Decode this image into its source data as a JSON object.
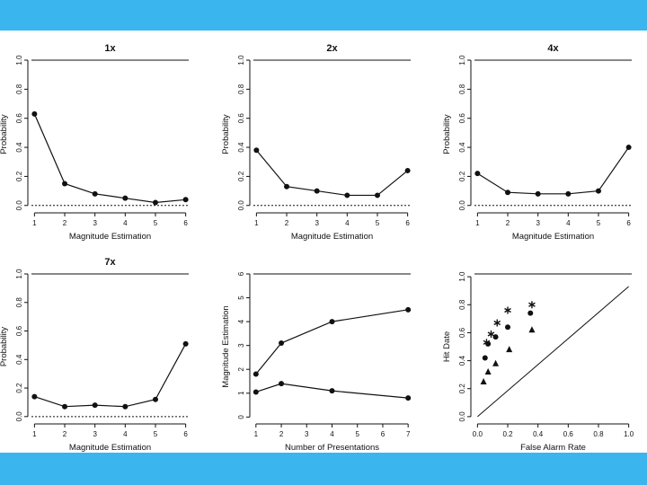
{
  "theme": {
    "band_color": "#3bb5ee",
    "ink": "#111111"
  },
  "chart_data": [
    {
      "type": "line",
      "title": "1x",
      "xlabel": "Magnitude Estimation",
      "ylabel": "Probability",
      "x": [
        1,
        2,
        3,
        4,
        5,
        6
      ],
      "xticks": [
        "1",
        "2",
        "3",
        "4",
        "5",
        "6"
      ],
      "yticks": [
        "0.0",
        "0.2",
        "0.4",
        "0.6",
        "0.8",
        "1.0"
      ],
      "xlim": [
        0.9,
        6.1
      ],
      "ylim": [
        -0.02,
        1.0
      ],
      "series": [
        {
          "name": "probability",
          "values": [
            0.63,
            0.15,
            0.08,
            0.05,
            0.02,
            0.04
          ]
        }
      ],
      "reference": {
        "type": "hline",
        "y": 0,
        "style": "dotted"
      }
    },
    {
      "type": "line",
      "title": "2x",
      "xlabel": "Magnitude Estimation",
      "ylabel": "Probability",
      "x": [
        1,
        2,
        3,
        4,
        5,
        6
      ],
      "xticks": [
        "1",
        "2",
        "3",
        "4",
        "5",
        "6"
      ],
      "yticks": [
        "0.0",
        "0.2",
        "0.4",
        "0.6",
        "0.8",
        "1.0"
      ],
      "xlim": [
        0.9,
        6.1
      ],
      "ylim": [
        -0.02,
        1.0
      ],
      "series": [
        {
          "name": "probability",
          "values": [
            0.38,
            0.13,
            0.1,
            0.07,
            0.07,
            0.24
          ]
        }
      ],
      "reference": {
        "type": "hline",
        "y": 0,
        "style": "dotted"
      }
    },
    {
      "type": "line",
      "title": "4x",
      "xlabel": "Magnitude Estimation",
      "ylabel": "Probability",
      "x": [
        1,
        2,
        3,
        4,
        5,
        6
      ],
      "xticks": [
        "1",
        "2",
        "3",
        "4",
        "5",
        "6"
      ],
      "yticks": [
        "0.0",
        "0.2",
        "0.4",
        "0.6",
        "0.8",
        "1.0"
      ],
      "xlim": [
        0.9,
        6.1
      ],
      "ylim": [
        -0.02,
        1.0
      ],
      "series": [
        {
          "name": "probability",
          "values": [
            0.22,
            0.09,
            0.08,
            0.08,
            0.1,
            0.4
          ]
        }
      ],
      "reference": {
        "type": "hline",
        "y": 0,
        "style": "dotted"
      }
    },
    {
      "type": "line",
      "title": "7x",
      "xlabel": "Magnitude Estimation",
      "ylabel": "Probability",
      "x": [
        1,
        2,
        3,
        4,
        5,
        6
      ],
      "xticks": [
        "1",
        "2",
        "3",
        "4",
        "5",
        "6"
      ],
      "yticks": [
        "0.0",
        "0.2",
        "0.4",
        "0.6",
        "0.8",
        "1.0"
      ],
      "xlim": [
        0.9,
        6.1
      ],
      "ylim": [
        -0.02,
        1.0
      ],
      "series": [
        {
          "name": "probability",
          "values": [
            0.14,
            0.07,
            0.08,
            0.07,
            0.12,
            0.51
          ]
        }
      ],
      "reference": {
        "type": "hline",
        "y": 0,
        "style": "dotted"
      }
    },
    {
      "type": "line",
      "title": "",
      "xlabel": "Number of Presentations",
      "ylabel": "Magnitude Estimation",
      "x": [
        1,
        2,
        4,
        7
      ],
      "xticks": [
        "1",
        "2",
        "3",
        "4",
        "5",
        "6",
        "7"
      ],
      "yticks": [
        "0",
        "1",
        "2",
        "3",
        "4",
        "5",
        "6"
      ],
      "xlim": [
        0.9,
        7.1
      ],
      "ylim": [
        -0.1,
        6.0
      ],
      "series": [
        {
          "name": "upper",
          "values": [
            1.8,
            3.1,
            4.0,
            4.5
          ]
        },
        {
          "name": "lower",
          "values": [
            1.05,
            1.4,
            1.1,
            0.8
          ]
        }
      ]
    },
    {
      "type": "scatter",
      "title": "",
      "xlabel": "False Alarm Rate",
      "ylabel": "Hit Date",
      "xticks": [
        "0.0",
        "0.2",
        "0.4",
        "0.6",
        "0.8",
        "1.0"
      ],
      "yticks": [
        "0.0",
        "0.2",
        "0.4",
        "0.6",
        "0.8",
        "1.0"
      ],
      "xlim": [
        -0.02,
        1.02
      ],
      "ylim": [
        -0.02,
        1.02
      ],
      "reference": {
        "type": "diagonal",
        "from": [
          0,
          0
        ],
        "to": [
          1,
          0.93
        ]
      },
      "series": [
        {
          "name": "circles",
          "marker": "circle",
          "x": [
            0.05,
            0.07,
            0.12,
            0.2,
            0.35
          ],
          "y": [
            0.42,
            0.52,
            0.57,
            0.64,
            0.74
          ]
        },
        {
          "name": "triangles",
          "marker": "triangle",
          "x": [
            0.04,
            0.07,
            0.12,
            0.21,
            0.36
          ],
          "y": [
            0.25,
            0.32,
            0.38,
            0.48,
            0.62
          ]
        },
        {
          "name": "stars",
          "marker": "star",
          "x": [
            0.06,
            0.09,
            0.13,
            0.2,
            0.36
          ],
          "y": [
            0.53,
            0.59,
            0.67,
            0.76,
            0.8
          ]
        }
      ]
    }
  ]
}
